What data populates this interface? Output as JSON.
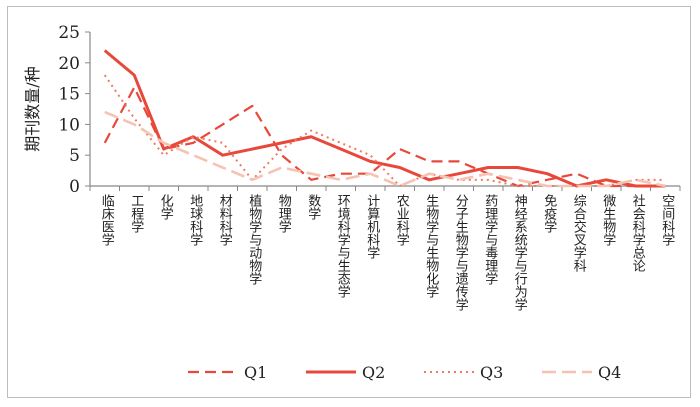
{
  "chart_data": {
    "type": "line",
    "title": "",
    "xlabel": "",
    "ylabel": "期刊数量/种",
    "ylim": [
      0,
      25
    ],
    "yticks": [
      0,
      5,
      10,
      15,
      20,
      25
    ],
    "grid": false,
    "legend_position": "bottom",
    "categories": [
      "临床医学",
      "工程学",
      "化学",
      "地球科学",
      "材料科学",
      "植物学与动物学",
      "物理学",
      "数学",
      "环境科学与生态学",
      "计算机科学",
      "农业科学",
      "生物学与生物化学",
      "分子生物学与遗传学",
      "药理学与毒理学",
      "神经系统学与行为学",
      "免疫学",
      "综合交叉学科",
      "微生物学",
      "社会科学总论",
      "空间科学"
    ],
    "series": [
      {
        "name": "Q1",
        "style": "dash",
        "color": "#e8483a",
        "values": [
          7,
          16,
          6,
          7,
          10,
          13,
          5,
          1,
          2,
          2,
          6,
          4,
          4,
          2,
          0,
          1,
          2,
          0,
          0,
          0
        ]
      },
      {
        "name": "Q2",
        "style": "solid",
        "color": "#e8483a",
        "values": [
          22,
          18,
          6,
          8,
          5,
          6,
          7,
          8,
          6,
          4,
          3,
          1,
          2,
          3,
          3,
          2,
          0,
          1,
          0,
          0
        ]
      },
      {
        "name": "Q3",
        "style": "dot",
        "color": "#ee7a62",
        "values": [
          18,
          11,
          5,
          8,
          7,
          1,
          6,
          9,
          7,
          5,
          0,
          2,
          1,
          1,
          0,
          0,
          0,
          0,
          1,
          1
        ]
      },
      {
        "name": "Q4",
        "style": "longdash",
        "color": "#f6c2b2",
        "values": [
          12,
          10,
          7,
          5,
          3,
          1,
          3,
          2,
          1,
          2,
          0,
          2,
          1,
          2,
          1,
          0,
          0,
          0,
          1,
          0
        ]
      }
    ]
  }
}
